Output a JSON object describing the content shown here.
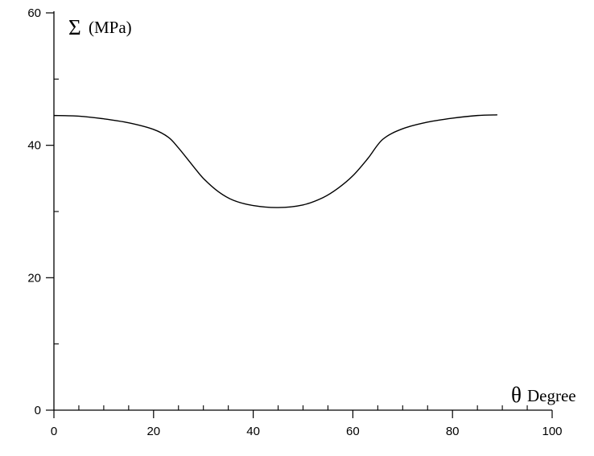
{
  "chart_data": {
    "type": "line",
    "xlabel_symbol": "θ",
    "xlabel_text": "Degree",
    "ylabel_symbol": "Σ",
    "ylabel_text": "(MPa)",
    "xlim": [
      0,
      100
    ],
    "ylim": [
      0,
      60
    ],
    "x_ticks": [
      0,
      20,
      40,
      60,
      80,
      100
    ],
    "x_tick_labels": [
      "0",
      "20",
      "40",
      "60",
      "80",
      "100"
    ],
    "y_ticks": [
      0,
      20,
      40,
      60
    ],
    "y_tick_labels": [
      "0",
      "20",
      "40",
      "60"
    ],
    "x_minor_step": 5,
    "y_minor_step": 10,
    "grid": false,
    "line_color": "#000000",
    "series": [
      {
        "x": [
          0,
          5,
          10,
          15,
          20,
          23,
          25,
          28,
          30,
          33,
          36,
          40,
          45,
          50,
          54,
          57,
          60,
          63,
          66,
          70,
          75,
          80,
          85,
          89
        ],
        "y": [
          44.5,
          44.4,
          44.0,
          43.4,
          42.4,
          41.2,
          39.6,
          36.8,
          35.0,
          33.0,
          31.7,
          30.9,
          30.6,
          31.0,
          32.1,
          33.5,
          35.4,
          38.0,
          40.9,
          42.5,
          43.5,
          44.1,
          44.5,
          44.6
        ]
      }
    ]
  }
}
